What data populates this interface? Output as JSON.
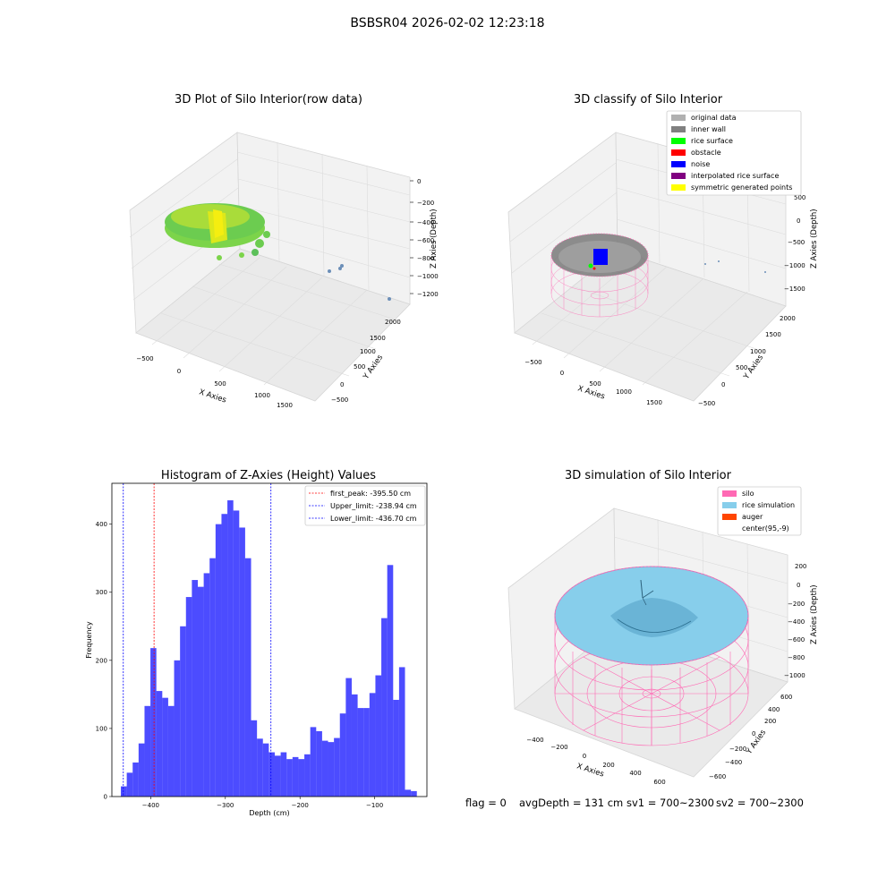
{
  "suptitle": "BSBSR04 2026-02-02 12:23:18",
  "panels": {
    "raw": {
      "title": "3D Plot of Silo Interior(row data)",
      "xlabel": "X Axies",
      "ylabel": "Y Axies",
      "zlabel": "Z Axies (Depth)",
      "xticks": [
        "−500",
        "0",
        "500",
        "1000",
        "1500"
      ],
      "yticks": [
        "−500",
        "0",
        "500",
        "1000",
        "1500",
        "2000"
      ],
      "zticks": [
        "0",
        "−200",
        "−400",
        "−600",
        "−800",
        "−1000",
        "−1200"
      ]
    },
    "classify": {
      "title": "3D classify of Silo Interior",
      "xlabel": "X Axies",
      "ylabel": "Y Axies",
      "zlabel": "Z Axies (Depth)",
      "xticks": [
        "−500",
        "0",
        "500",
        "1000",
        "1500"
      ],
      "yticks": [
        "−500",
        "0",
        "500",
        "1000",
        "1500",
        "2000"
      ],
      "zticks": [
        "500",
        "0",
        "−500",
        "−1000",
        "−1500"
      ],
      "legend": [
        {
          "label": "original data",
          "color": "#b0b0b0"
        },
        {
          "label": "inner wall",
          "color": "#808080"
        },
        {
          "label": "rice surface",
          "color": "#00ff00"
        },
        {
          "label": "obstacle",
          "color": "#ff0000"
        },
        {
          "label": "noise",
          "color": "#0000ff"
        },
        {
          "label": "interpolated rice surface",
          "color": "#800080"
        },
        {
          "label": "symmetric generated points",
          "color": "#ffff00"
        }
      ]
    },
    "sim": {
      "title": "3D simulation of Silo Interior",
      "xlabel": "X Axies",
      "ylabel": "Y Axies",
      "zlabel": "Z Axies (Depth)",
      "xticks": [
        "−400",
        "−200",
        "0",
        "200",
        "400",
        "600"
      ],
      "yticks": [
        "−600",
        "−400",
        "−200",
        "0",
        "200",
        "400",
        "600"
      ],
      "zticks": [
        "200",
        "0",
        "−200",
        "−400",
        "−600",
        "−800",
        "−1000"
      ],
      "legend": [
        {
          "label": "silo",
          "color": "#ff69b4"
        },
        {
          "label": "rice simulation",
          "color": "#87ceeb"
        },
        {
          "label": "auger",
          "color": "#ff4500"
        },
        {
          "label": "center(95,-9)",
          "color": "none"
        }
      ]
    }
  },
  "status": {
    "flag": "flag = 0",
    "avg": "avgDepth = 131 cm",
    "sv1": "sv1 = 700~2300",
    "sv2": "sv2 = 700~2300"
  },
  "chart_data": {
    "type": "bar",
    "title": "Histogram of Z-Axies (Height) Values",
    "xlabel": "Depth (cm)",
    "ylabel": "Frequency",
    "xlim": [
      -452,
      -30
    ],
    "ylim": [
      0,
      460
    ],
    "bin_start": -440,
    "bin_width": 7.93,
    "values": [
      15,
      35,
      50,
      78,
      133,
      218,
      155,
      145,
      133,
      200,
      250,
      293,
      318,
      308,
      328,
      350,
      400,
      415,
      435,
      420,
      395,
      350,
      112,
      85,
      78,
      65,
      60,
      65,
      55,
      58,
      55,
      62,
      102,
      96,
      82,
      80,
      86,
      122,
      174,
      150,
      130,
      130,
      152,
      178,
      262,
      340,
      142,
      190,
      10,
      8
    ],
    "xticks": [
      -400,
      -300,
      -200,
      -100
    ],
    "xtick_labels": [
      "−400",
      "−300",
      "−200",
      "−100"
    ],
    "yticks": [
      0,
      100,
      200,
      300,
      400
    ],
    "color": "#0000ff",
    "lines": [
      {
        "label": "first_peak: -395.50 cm",
        "x": -395.5,
        "color": "#ff0000"
      },
      {
        "label": "Upper_limit: -238.94 cm",
        "x": -238.94,
        "color": "#0000ff"
      },
      {
        "label": "Lower_limit: -436.70 cm",
        "x": -436.7,
        "color": "#0000ff"
      }
    ],
    "legend_position": "upper right"
  }
}
